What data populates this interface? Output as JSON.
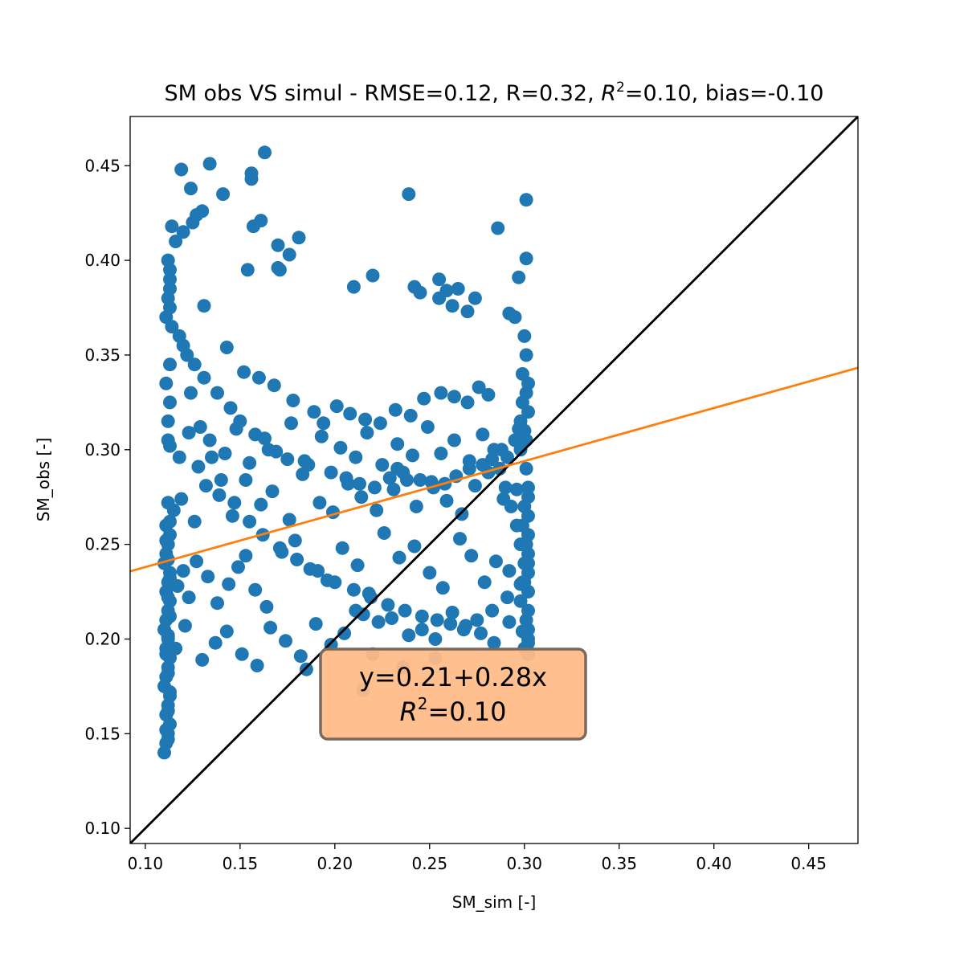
{
  "chart_data": {
    "type": "scatter",
    "title": "SM obs VS simul - RMSE=0.12, R=0.32, R²=0.10, bias=-0.10",
    "title_parts": {
      "pre": "SM obs VS simul - RMSE=0.12, R=0.32, ",
      "r2_base": "R",
      "r2_sup": "2",
      "post": "=0.10, bias=-0.10"
    },
    "xlabel": "SM_sim [-]",
    "ylabel": "SM_obs [-]",
    "xlim": [
      0.092,
      0.476
    ],
    "ylim": [
      0.092,
      0.476
    ],
    "xticks": [
      0.1,
      0.15,
      0.2,
      0.25,
      0.3,
      0.35,
      0.4,
      0.45
    ],
    "yticks": [
      0.1,
      0.15,
      0.2,
      0.25,
      0.3,
      0.35,
      0.4,
      0.45
    ],
    "xtick_labels": [
      "0.10",
      "0.15",
      "0.20",
      "0.25",
      "0.30",
      "0.35",
      "0.40",
      "0.45"
    ],
    "ytick_labels": [
      "0.10",
      "0.15",
      "0.20",
      "0.25",
      "0.30",
      "0.35",
      "0.40",
      "0.45"
    ],
    "grid": false,
    "series": [
      {
        "color": "#1f77b4",
        "x": [
          0.119,
          0.134,
          0.124,
          0.141,
          0.156,
          0.156,
          0.163,
          0.157,
          0.161,
          0.17,
          0.181,
          0.176,
          0.17,
          0.171,
          0.154,
          0.21,
          0.22,
          0.239,
          0.242,
          0.245,
          0.255,
          0.255,
          0.259,
          0.262,
          0.265,
          0.27,
          0.274,
          0.286,
          0.301,
          0.301,
          0.297,
          0.292,
          0.295,
          0.125,
          0.13,
          0.127,
          0.12,
          0.114,
          0.116,
          0.112,
          0.113,
          0.112,
          0.111,
          0.118,
          0.122,
          0.126,
          0.131,
          0.138,
          0.145,
          0.15,
          0.158,
          0.165,
          0.175,
          0.186,
          0.198,
          0.206,
          0.213,
          0.221,
          0.229,
          0.233,
          0.236,
          0.245,
          0.252,
          0.258,
          0.264,
          0.271,
          0.278,
          0.283,
          0.288,
          0.295,
          0.3,
          0.185,
          0.131,
          0.143,
          0.152,
          0.16,
          0.168,
          0.178,
          0.189,
          0.194,
          0.201,
          0.208,
          0.216,
          0.224,
          0.232,
          0.24,
          0.247,
          0.256,
          0.263,
          0.27,
          0.276,
          0.281,
          0.113,
          0.113,
          0.113,
          0.114,
          0.12,
          0.124,
          0.129,
          0.135,
          0.14,
          0.147,
          0.155,
          0.162,
          0.171,
          0.18,
          0.191,
          0.2,
          0.21,
          0.219,
          0.228,
          0.237,
          0.246,
          0.254,
          0.261,
          0.268,
          0.275,
          0.283,
          0.291,
          0.299,
          0.3,
          0.298,
          0.296,
          0.293,
          0.29,
          0.287,
          0.302,
          0.302,
          0.302,
          0.302,
          0.302,
          0.302,
          0.302,
          0.302,
          0.302,
          0.302,
          0.11,
          0.111,
          0.112,
          0.113,
          0.111,
          0.112,
          0.113,
          0.11,
          0.111,
          0.112,
          0.113,
          0.111,
          0.112,
          0.11,
          0.111,
          0.112,
          0.113,
          0.111,
          0.112,
          0.113,
          0.11,
          0.111,
          0.112,
          0.113,
          0.111,
          0.117,
          0.12,
          0.123,
          0.127,
          0.133,
          0.138,
          0.144,
          0.149,
          0.153,
          0.158,
          0.164,
          0.172,
          0.179,
          0.187,
          0.196,
          0.204,
          0.212,
          0.218,
          0.226,
          0.234,
          0.242,
          0.25,
          0.257,
          0.266,
          0.272,
          0.279,
          0.285,
          0.292,
          0.298,
          0.115,
          0.119,
          0.126,
          0.132,
          0.139,
          0.146,
          0.153,
          0.161,
          0.167,
          0.176,
          0.183,
          0.192,
          0.199,
          0.207,
          0.214,
          0.222,
          0.231,
          0.238,
          0.243,
          0.251,
          0.259,
          0.267,
          0.274,
          0.281,
          0.289,
          0.296,
          0.113,
          0.118,
          0.123,
          0.128,
          0.134,
          0.142,
          0.148,
          0.155,
          0.163,
          0.169,
          0.177,
          0.184,
          0.193,
          0.203,
          0.211,
          0.217,
          0.225,
          0.233,
          0.241,
          0.249,
          0.256,
          0.263,
          0.271,
          0.278,
          0.284,
          0.291,
          0.297,
          0.112,
          0.116,
          0.121,
          0.13,
          0.137,
          0.143,
          0.151,
          0.159,
          0.166,
          0.174,
          0.182,
          0.19,
          0.198,
          0.205,
          0.215,
          0.223,
          0.23,
          0.239,
          0.246,
          0.253,
          0.262,
          0.269,
          0.277,
          0.284,
          0.292,
          0.299,
          0.112,
          0.112,
          0.113,
          0.111,
          0.113,
          0.112,
          0.113,
          0.111,
          0.112,
          0.113,
          0.112,
          0.113,
          0.112,
          0.111,
          0.112,
          0.113,
          0.112,
          0.111,
          0.112,
          0.299,
          0.301,
          0.302,
          0.3,
          0.298,
          0.301,
          0.302,
          0.3,
          0.299,
          0.301,
          0.302,
          0.3,
          0.298,
          0.301,
          0.302,
          0.3,
          0.299,
          0.302,
          0.301,
          0.3,
          0.298,
          0.301,
          0.22,
          0.215,
          0.236,
          0.253,
          0.211
        ],
        "y": [
          0.448,
          0.451,
          0.438,
          0.435,
          0.446,
          0.443,
          0.457,
          0.418,
          0.421,
          0.408,
          0.412,
          0.403,
          0.396,
          0.395,
          0.395,
          0.386,
          0.392,
          0.435,
          0.386,
          0.383,
          0.38,
          0.39,
          0.384,
          0.376,
          0.385,
          0.373,
          0.38,
          0.417,
          0.432,
          0.401,
          0.391,
          0.372,
          0.37,
          0.42,
          0.426,
          0.424,
          0.415,
          0.418,
          0.41,
          0.4,
          0.39,
          0.38,
          0.37,
          0.36,
          0.35,
          0.345,
          0.338,
          0.33,
          0.322,
          0.315,
          0.308,
          0.3,
          0.295,
          0.292,
          0.288,
          0.285,
          0.282,
          0.28,
          0.285,
          0.29,
          0.288,
          0.284,
          0.28,
          0.282,
          0.286,
          0.29,
          0.292,
          0.295,
          0.3,
          0.305,
          0.31,
          0.184,
          0.376,
          0.354,
          0.341,
          0.338,
          0.334,
          0.326,
          0.32,
          0.314,
          0.323,
          0.319,
          0.316,
          0.314,
          0.321,
          0.318,
          0.327,
          0.33,
          0.328,
          0.325,
          0.333,
          0.329,
          0.395,
          0.385,
          0.375,
          0.365,
          0.355,
          0.33,
          0.312,
          0.296,
          0.284,
          0.272,
          0.262,
          0.255,
          0.248,
          0.242,
          0.236,
          0.23,
          0.226,
          0.222,
          0.218,
          0.215,
          0.212,
          0.21,
          0.208,
          0.205,
          0.21,
          0.215,
          0.222,
          0.23,
          0.24,
          0.25,
          0.26,
          0.27,
          0.28,
          0.29,
          0.192,
          0.198,
          0.205,
          0.215,
          0.225,
          0.235,
          0.245,
          0.255,
          0.265,
          0.275,
          0.14,
          0.145,
          0.15,
          0.155,
          0.16,
          0.165,
          0.17,
          0.175,
          0.18,
          0.185,
          0.19,
          0.195,
          0.2,
          0.205,
          0.21,
          0.215,
          0.22,
          0.225,
          0.23,
          0.235,
          0.24,
          0.245,
          0.25,
          0.255,
          0.26,
          0.228,
          0.236,
          0.222,
          0.241,
          0.233,
          0.219,
          0.229,
          0.238,
          0.244,
          0.226,
          0.217,
          0.246,
          0.252,
          0.237,
          0.231,
          0.248,
          0.239,
          0.224,
          0.256,
          0.243,
          0.249,
          0.235,
          0.227,
          0.253,
          0.244,
          0.23,
          0.241,
          0.236,
          0.229,
          0.268,
          0.274,
          0.262,
          0.281,
          0.276,
          0.265,
          0.284,
          0.271,
          0.278,
          0.263,
          0.287,
          0.272,
          0.267,
          0.282,
          0.275,
          0.268,
          0.279,
          0.284,
          0.27,
          0.283,
          0.273,
          0.266,
          0.281,
          0.288,
          0.274,
          0.279,
          0.302,
          0.296,
          0.309,
          0.291,
          0.305,
          0.298,
          0.311,
          0.293,
          0.306,
          0.299,
          0.314,
          0.294,
          0.307,
          0.301,
          0.296,
          0.309,
          0.292,
          0.303,
          0.297,
          0.312,
          0.298,
          0.305,
          0.294,
          0.308,
          0.3,
          0.296,
          0.311,
          0.201,
          0.195,
          0.207,
          0.189,
          0.198,
          0.204,
          0.192,
          0.186,
          0.206,
          0.199,
          0.191,
          0.208,
          0.197,
          0.203,
          0.213,
          0.209,
          0.211,
          0.202,
          0.205,
          0.2,
          0.214,
          0.207,
          0.203,
          0.198,
          0.209,
          0.204,
          0.305,
          0.315,
          0.325,
          0.335,
          0.345,
          0.272,
          0.262,
          0.252,
          0.242,
          0.232,
          0.222,
          0.212,
          0.202,
          0.192,
          0.182,
          0.172,
          0.162,
          0.152,
          0.147,
          0.34,
          0.33,
          0.32,
          0.31,
          0.3,
          0.29,
          0.28,
          0.27,
          0.26,
          0.25,
          0.24,
          0.23,
          0.22,
          0.21,
          0.2,
          0.195,
          0.325,
          0.335,
          0.35,
          0.36,
          0.315,
          0.305,
          0.192,
          0.173,
          0.185,
          0.19,
          0.215
        ]
      }
    ],
    "lines": [
      {
        "kind": "identity",
        "color": "#000000",
        "intercept": 0.0,
        "slope": 1.0
      },
      {
        "kind": "regression",
        "color": "#ff7f0e",
        "intercept": 0.21,
        "slope": 0.28
      }
    ],
    "annotation": {
      "line1": "y=0.21+0.28x",
      "line2_base": "R",
      "line2_sup": "2",
      "line2_post": "=0.10",
      "box_color": "#ffbb87",
      "edge_color": "#7a6a5e"
    }
  }
}
